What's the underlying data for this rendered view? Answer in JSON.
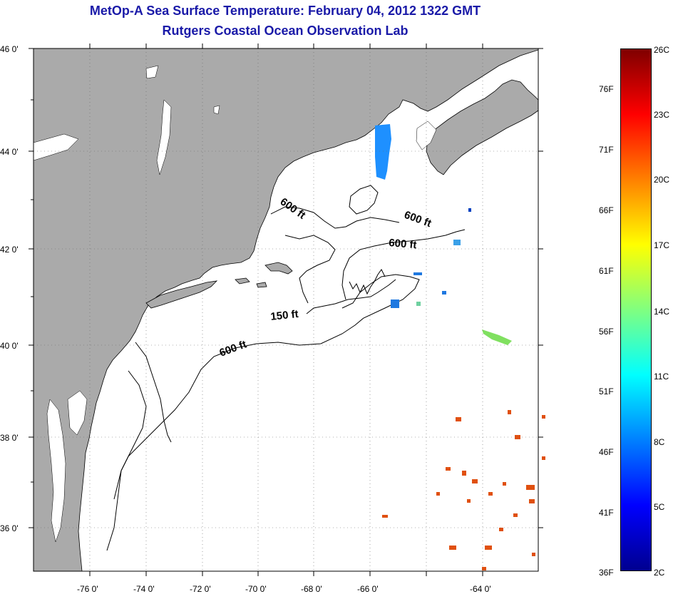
{
  "header": {
    "title": "MetOp-A Sea Surface Temperature:  February 04, 2012 1322 GMT",
    "subtitle": "Rutgers Coastal Ocean Observation Lab"
  },
  "map": {
    "lat_labels": [
      "46 0'",
      "44 0'",
      "42 0'",
      "40 0'",
      "38 0'",
      "36 0'"
    ],
    "lon_labels": [
      "-76 0'",
      "-74 0'",
      "-72 0'",
      "-70 0'",
      "-68 0'",
      "-66 0'",
      "-64 0'"
    ],
    "contour_labels": [
      "600 ft",
      "600 ft",
      "600 ft",
      "150 ft",
      "600 ft"
    ],
    "colors": {
      "land": "#aaaaaa",
      "ocean": "#ffffff",
      "grid": "#666666"
    }
  },
  "colorbar": {
    "fahrenheit": [
      "76F",
      "71F",
      "66F",
      "61F",
      "56F",
      "51F",
      "46F",
      "41F",
      "36F"
    ],
    "celsius": [
      "26C",
      "23C",
      "20C",
      "17C",
      "14C",
      "11C",
      "8C",
      "5C",
      "2C"
    ],
    "colors": [
      "#7f0000",
      "#ff0000",
      "#ff8000",
      "#ffff00",
      "#80ff80",
      "#00ffff",
      "#0080ff",
      "#0000ff",
      "#00008f"
    ]
  }
}
